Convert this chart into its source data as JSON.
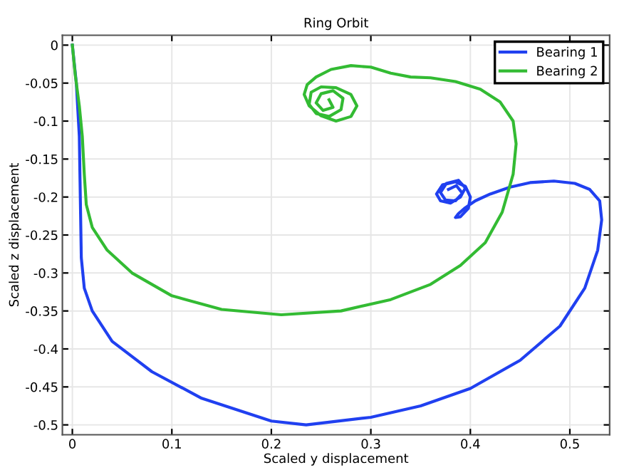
{
  "chart_data": {
    "type": "line",
    "title": "Ring Orbit",
    "xlabel": "Scaled y displacement",
    "ylabel": "Scaled z displacement",
    "xlim": [
      -0.01,
      0.54
    ],
    "ylim": [
      -0.513,
      0.013
    ],
    "xticks": [
      0,
      0.1,
      0.2,
      0.3,
      0.4,
      0.5
    ],
    "yticks": [
      0,
      -0.05,
      -0.1,
      -0.15,
      -0.2,
      -0.25,
      -0.3,
      -0.35,
      -0.4,
      -0.45,
      -0.5
    ],
    "grid": true,
    "legend": "top right",
    "marker": "none",
    "line_style": "solid",
    "series": [
      {
        "name": "Bearing 1",
        "color": "#2040f0",
        "x": [
          0,
          0.004,
          0.007,
          0.008,
          0.009,
          0.012,
          0.02,
          0.04,
          0.08,
          0.13,
          0.2,
          0.235,
          0.3,
          0.35,
          0.4,
          0.45,
          0.49,
          0.515,
          0.528,
          0.532,
          0.53,
          0.52,
          0.505,
          0.484,
          0.46,
          0.44,
          0.42,
          0.405,
          0.395,
          0.388,
          0.385,
          0.39,
          0.398,
          0.4,
          0.395,
          0.385,
          0.372,
          0.366,
          0.37,
          0.38,
          0.39,
          0.395,
          0.388,
          0.376,
          0.37,
          0.375,
          0.385,
          0.392,
          0.386,
          0.378
        ],
        "values": [
          0,
          -0.05,
          -0.12,
          -0.2,
          -0.28,
          -0.32,
          -0.35,
          -0.39,
          -0.43,
          -0.465,
          -0.495,
          -0.5,
          -0.49,
          -0.475,
          -0.452,
          -0.415,
          -0.37,
          -0.32,
          -0.27,
          -0.23,
          -0.205,
          -0.19,
          -0.182,
          -0.179,
          -0.181,
          -0.187,
          -0.196,
          -0.205,
          -0.214,
          -0.222,
          -0.227,
          -0.226,
          -0.215,
          -0.2,
          -0.186,
          -0.18,
          -0.184,
          -0.196,
          -0.205,
          -0.208,
          -0.2,
          -0.188,
          -0.178,
          -0.182,
          -0.194,
          -0.204,
          -0.205,
          -0.195,
          -0.185,
          -0.19
        ]
      },
      {
        "name": "Bearing 2",
        "color": "#33bb33",
        "x": [
          0,
          0.003,
          0.007,
          0.01,
          0.012,
          0.014,
          0.02,
          0.035,
          0.06,
          0.1,
          0.15,
          0.21,
          0.27,
          0.32,
          0.36,
          0.39,
          0.415,
          0.432,
          0.443,
          0.446,
          0.443,
          0.43,
          0.41,
          0.385,
          0.36,
          0.34,
          0.32,
          0.3,
          0.28,
          0.26,
          0.245,
          0.236,
          0.233,
          0.238,
          0.25,
          0.265,
          0.28,
          0.286,
          0.28,
          0.265,
          0.25,
          0.24,
          0.238,
          0.245,
          0.258,
          0.27,
          0.272,
          0.262,
          0.25,
          0.245,
          0.252,
          0.262,
          0.258
        ],
        "values": [
          0,
          -0.04,
          -0.08,
          -0.12,
          -0.17,
          -0.21,
          -0.24,
          -0.27,
          -0.3,
          -0.33,
          -0.348,
          -0.355,
          -0.35,
          -0.335,
          -0.315,
          -0.29,
          -0.26,
          -0.22,
          -0.17,
          -0.13,
          -0.1,
          -0.075,
          -0.058,
          -0.048,
          -0.043,
          -0.042,
          -0.037,
          -0.029,
          -0.027,
          -0.032,
          -0.042,
          -0.052,
          -0.065,
          -0.08,
          -0.093,
          -0.1,
          -0.094,
          -0.08,
          -0.065,
          -0.056,
          -0.055,
          -0.062,
          -0.078,
          -0.09,
          -0.094,
          -0.085,
          -0.07,
          -0.06,
          -0.064,
          -0.076,
          -0.086,
          -0.082,
          -0.072
        ]
      }
    ]
  }
}
